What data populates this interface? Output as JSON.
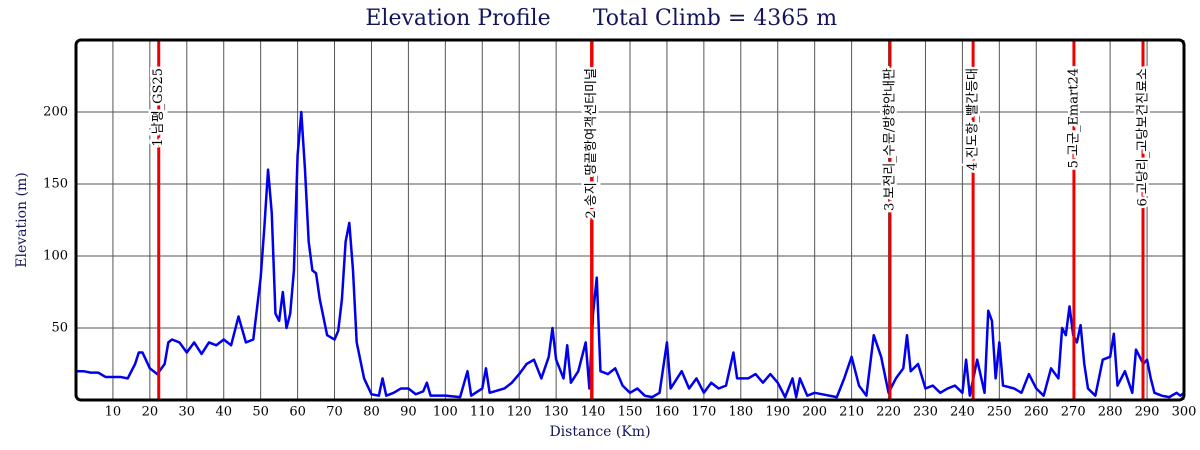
{
  "chart_data": {
    "type": "line",
    "title": "Elevation Profile",
    "subtitle": "Total Climb = 4365 m",
    "x_label": "Distance (Km)",
    "y_label": "Elevation (m)",
    "color": "#0000ee",
    "marker_color": "#ee0000",
    "grid": true,
    "xlim": [
      0,
      300
    ],
    "ylim": [
      0,
      250
    ],
    "xticks": [
      10,
      20,
      30,
      40,
      50,
      60,
      70,
      80,
      90,
      100,
      110,
      120,
      130,
      140,
      150,
      160,
      170,
      180,
      190,
      200,
      210,
      220,
      230,
      240,
      250,
      260,
      270,
      280,
      290,
      300
    ],
    "yticks": [
      50,
      100,
      150,
      200
    ],
    "x": [
      0,
      2,
      4,
      6,
      8,
      10,
      12,
      14,
      16,
      17,
      18,
      20,
      22,
      24,
      25,
      26,
      28,
      30,
      32,
      34,
      36,
      38,
      40,
      42,
      44,
      46,
      48,
      50,
      51,
      52,
      53,
      54,
      55,
      56,
      57,
      58,
      59,
      60,
      61,
      62,
      63,
      64,
      65,
      66,
      68,
      70,
      71,
      72,
      73,
      74,
      75,
      76,
      78,
      80,
      82,
      83,
      84,
      86,
      88,
      90,
      92,
      94,
      95,
      96,
      100,
      104,
      106,
      107,
      110,
      111,
      112,
      116,
      118,
      120,
      122,
      124,
      126,
      128,
      129,
      130,
      132,
      133,
      134,
      136,
      138,
      139,
      140,
      141,
      142,
      144,
      146,
      148,
      150,
      152,
      154,
      156,
      158,
      160,
      161,
      164,
      166,
      168,
      170,
      172,
      174,
      176,
      178,
      179,
      182,
      184,
      186,
      188,
      190,
      192,
      194,
      195,
      196,
      198,
      200,
      204,
      206,
      208,
      210,
      212,
      214,
      216,
      218,
      220,
      222,
      224,
      225,
      226,
      228,
      230,
      232,
      234,
      236,
      238,
      240,
      241,
      242,
      244,
      246,
      247,
      248,
      249,
      250,
      251,
      254,
      256,
      258,
      260,
      262,
      264,
      266,
      267,
      268,
      269,
      270,
      271,
      272,
      273,
      274,
      276,
      278,
      280,
      281,
      282,
      284,
      286,
      287,
      288,
      289,
      290,
      291,
      292,
      294,
      296,
      298,
      299,
      300
    ],
    "values": [
      20,
      20,
      19,
      19,
      16,
      16,
      16,
      15,
      25,
      33,
      33,
      22,
      18,
      25,
      40,
      42,
      40,
      33,
      40,
      32,
      40,
      38,
      42,
      38,
      58,
      40,
      42,
      85,
      120,
      160,
      130,
      60,
      55,
      75,
      50,
      60,
      90,
      170,
      200,
      160,
      110,
      90,
      88,
      70,
      45,
      42,
      48,
      70,
      110,
      123,
      90,
      40,
      15,
      4,
      3,
      15,
      3,
      5,
      8,
      8,
      4,
      6,
      12,
      3,
      3,
      2,
      20,
      3,
      8,
      22,
      5,
      8,
      12,
      18,
      25,
      28,
      15,
      30,
      50,
      28,
      15,
      38,
      12,
      20,
      40,
      8,
      60,
      85,
      20,
      18,
      22,
      10,
      5,
      8,
      3,
      2,
      5,
      40,
      8,
      20,
      8,
      15,
      5,
      12,
      8,
      10,
      33,
      15,
      15,
      18,
      12,
      18,
      12,
      2,
      15,
      2,
      15,
      3,
      5,
      3,
      2,
      15,
      30,
      10,
      3,
      45,
      30,
      5,
      15,
      22,
      45,
      20,
      25,
      8,
      10,
      5,
      8,
      10,
      5,
      28,
      3,
      28,
      5,
      62,
      55,
      15,
      40,
      10,
      8,
      5,
      18,
      8,
      3,
      22,
      15,
      50,
      45,
      65,
      45,
      40,
      52,
      25,
      8,
      3,
      28,
      30,
      46,
      10,
      20,
      5,
      35,
      30,
      25,
      28,
      15,
      5,
      3,
      2,
      5,
      3,
      5
    ],
    "markers": [
      {
        "x": 22.4,
        "label": "1 남평_GS25"
      },
      {
        "x": 139.6,
        "label": "2 송지_땅끝항여객선터미널"
      },
      {
        "x": 220.4,
        "label": "3 보전리_수문/방향안내판"
      },
      {
        "x": 242.9,
        "label": "4 진도항_빨간등대"
      },
      {
        "x": 270.2,
        "label": "5 고군_Emart24"
      },
      {
        "x": 288.9,
        "label": "6 고당리_고당보건진료소"
      }
    ]
  }
}
